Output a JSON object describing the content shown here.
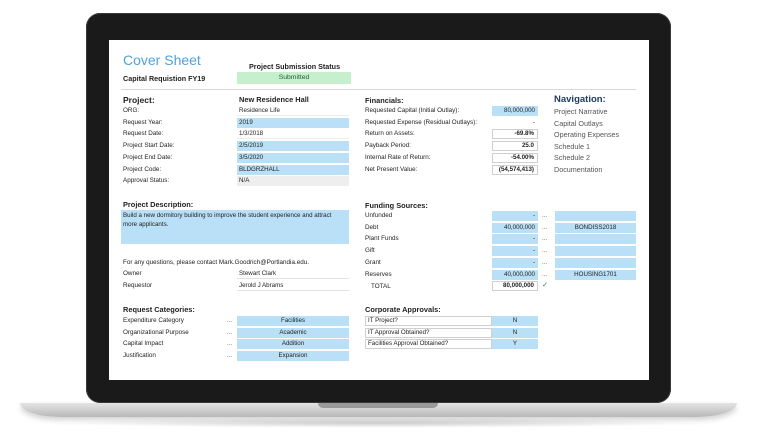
{
  "header": {
    "title": "Cover Sheet",
    "subtitle": "Capital Requistion FY19",
    "status_label": "Project Submission Status",
    "status_value": "Submitted"
  },
  "project": {
    "heading": "Project:",
    "name": "New Residence Hall",
    "fields": [
      {
        "label": "ORG:",
        "value": "Residence Life",
        "style": "plain"
      },
      {
        "label": "Request Year:",
        "value": "2019",
        "style": "blue"
      },
      {
        "label": "Request Date:",
        "value": "1/3/2018",
        "style": "plain"
      },
      {
        "label": "Project Start Date:",
        "value": "2/5/2019",
        "style": "blue"
      },
      {
        "label": "Project End Date:",
        "value": "3/5/2020",
        "style": "blue"
      },
      {
        "label": "Project Code:",
        "value": "BLDGRZHALL",
        "style": "blue"
      },
      {
        "label": "Approval Status:",
        "value": "N/A",
        "style": "grey"
      }
    ]
  },
  "financials": {
    "heading": "Financials:",
    "rows": [
      {
        "label": "Requested Capital (Initial Outlay):",
        "value": "80,000,000",
        "style": "blue"
      },
      {
        "label": "Requested Expense (Residual Outlays):",
        "value": "-",
        "style": "plain"
      },
      {
        "label": "Return on Assets:",
        "value": "-69.8%",
        "style": "white"
      },
      {
        "label": "Payback Period:",
        "value": "25.0",
        "style": "white"
      },
      {
        "label": "Internal Rate of Return:",
        "value": "-54.00%",
        "style": "white"
      },
      {
        "label": "Net Present Value:",
        "value": "(54,574,413)",
        "style": "white"
      }
    ]
  },
  "navigation": {
    "heading": "Navigation:",
    "items": [
      "Project Narrative",
      "Capital Outlays",
      "Operating Expenses",
      "Schedule 1",
      "Schedule 2",
      "Documentation"
    ]
  },
  "description": {
    "heading": "Project Description:",
    "text": "Build a new dormitory building to improve the student experience and attract more applicants.",
    "contact": "For any questions, please contact Mark.Goodrich@Portlandia.edu.",
    "owner_label": "Owner",
    "owner_value": "Stewart Clark",
    "requestor_label": "Requestor",
    "requestor_value": "Jerold J Abrams"
  },
  "funding": {
    "heading": "Funding Sources:",
    "rows": [
      {
        "label": "Unfunded",
        "amount": "-",
        "code": ""
      },
      {
        "label": "Debt",
        "amount": "40,000,000",
        "code": "BONDISS2018"
      },
      {
        "label": "Plant Funds",
        "amount": "-",
        "code": ""
      },
      {
        "label": "Gift",
        "amount": "-",
        "code": ""
      },
      {
        "label": "Grant",
        "amount": "-",
        "code": ""
      },
      {
        "label": "Reserves",
        "amount": "40,000,000",
        "code": "HOUSING1701"
      }
    ],
    "total_label": "TOTAL",
    "total_value": "80,000,000",
    "ellipsis": "...",
    "check": "✓"
  },
  "categories": {
    "heading": "Request Categories:",
    "rows": [
      {
        "label": "Expenditure Category",
        "value": "Facilities"
      },
      {
        "label": "Organizational Purpose",
        "value": "Academic"
      },
      {
        "label": "Capital Impact",
        "value": "Addition"
      },
      {
        "label": "Justification",
        "value": "Expansion"
      }
    ],
    "ellipsis": "..."
  },
  "approvals": {
    "heading": "Corporate Approvals:",
    "rows": [
      {
        "label": "IT Project?",
        "value": "N"
      },
      {
        "label": "IT Approval Obtained?",
        "value": "N"
      },
      {
        "label": "Facilities Approval Obtained?",
        "value": "Y"
      }
    ]
  },
  "colors": {
    "title_blue": "#4ea3da",
    "input_blue": "#b9e0f7",
    "status_green": "#c6efce",
    "nav_heading": "#1f3b63"
  }
}
